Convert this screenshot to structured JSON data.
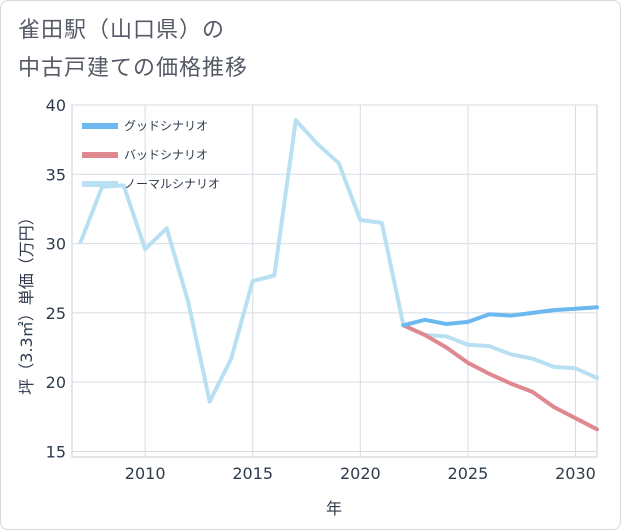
{
  "title_lines": [
    "雀田駅（山口県）の",
    "中古戸建ての価格推移"
  ],
  "chart_data": {
    "type": "line",
    "xlabel": "年",
    "ylabel": "坪（3.3㎡）単価（万円）",
    "xlim": [
      2006.6,
      2031
    ],
    "ylim": [
      14.6,
      40
    ],
    "xticks": [
      2010,
      2015,
      2020,
      2025,
      2030
    ],
    "yticks": [
      15,
      20,
      25,
      30,
      35,
      40
    ],
    "grid": true,
    "legend_position": "top-left",
    "series": [
      {
        "name": "グッドシナリオ",
        "color": "#6cb8f0",
        "x": [
          2022,
          2023,
          2024,
          2025,
          2026,
          2027,
          2028,
          2029,
          2030,
          2031
        ],
        "values": [
          24.1,
          24.5,
          24.2,
          24.35,
          24.9,
          24.8,
          25.0,
          25.2,
          25.3,
          25.4
        ]
      },
      {
        "name": "バッドシナリオ",
        "color": "#e08890",
        "x": [
          2022,
          2023,
          2024,
          2025,
          2026,
          2027,
          2028,
          2029,
          2030,
          2031
        ],
        "values": [
          24.1,
          23.4,
          22.5,
          21.4,
          20.6,
          19.9,
          19.3,
          18.2,
          17.4,
          16.6
        ]
      },
      {
        "name": "ノーマルシナリオ",
        "color": "#b8e0f2",
        "x": [
          2007,
          2008,
          2009,
          2010,
          2011,
          2012,
          2013,
          2014,
          2015,
          2016,
          2017,
          2018,
          2019,
          2020,
          2021,
          2022,
          2023,
          2024,
          2025,
          2026,
          2027,
          2028,
          2029,
          2030,
          2031
        ],
        "values": [
          30.1,
          34.1,
          34.2,
          29.6,
          31.1,
          25.8,
          18.6,
          21.7,
          27.3,
          27.7,
          38.9,
          37.2,
          35.8,
          31.7,
          31.5,
          24.1,
          23.4,
          23.3,
          22.7,
          22.6,
          22.0,
          21.7,
          21.1,
          21.0,
          20.3
        ]
      }
    ]
  }
}
